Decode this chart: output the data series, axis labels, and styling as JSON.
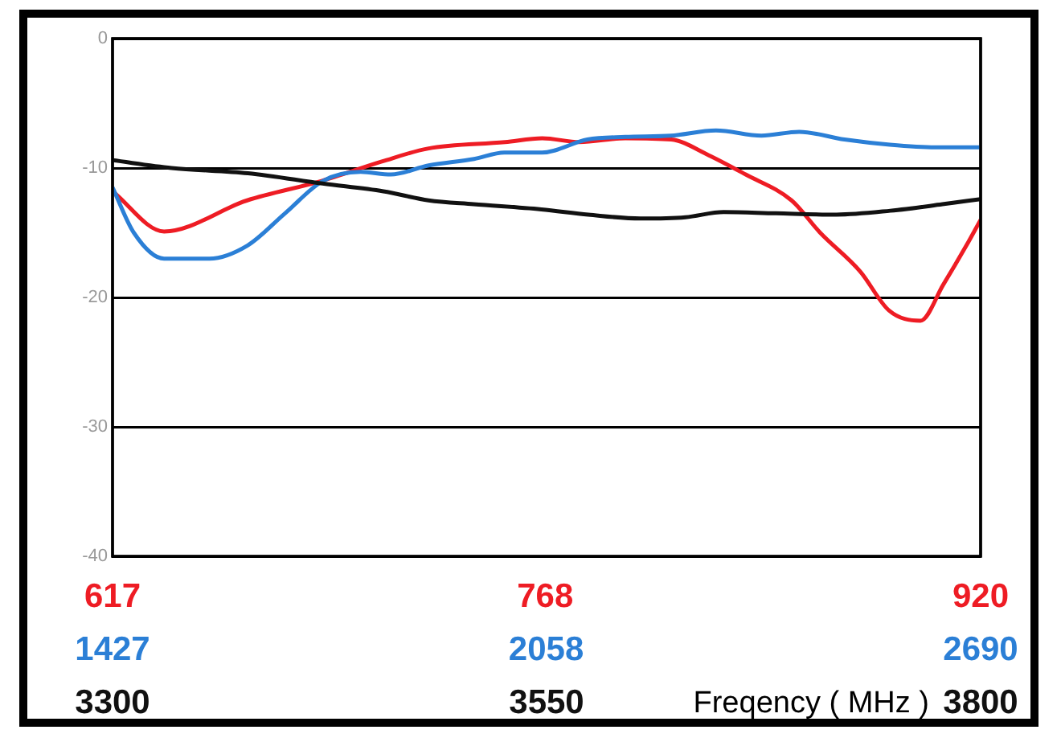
{
  "chart_data": [
    {
      "type": "line",
      "xlim": [
        617,
        920
      ],
      "xticks": [
        617,
        768,
        920
      ],
      "ylim": [
        -40,
        0
      ],
      "yticks": [
        0,
        -10,
        -20,
        -30,
        -40
      ],
      "grid": "y",
      "legend": false,
      "marker": "none",
      "line_style": "solid",
      "series": [
        {
          "color": "#ee1c24",
          "x": [
            617,
            635,
            664,
            690,
            711,
            727,
            754,
            767,
            780,
            796,
            812,
            825,
            838,
            854,
            864,
            878,
            888,
            899,
            907,
            915,
            920
          ],
          "values": [
            -11.8,
            -14.9,
            -12.5,
            -11,
            -9.5,
            -8.5,
            -8,
            -7.7,
            -8,
            -7.7,
            -7.8,
            -9,
            -10.5,
            -12.5,
            -15,
            -18,
            -21,
            -21.8,
            -19,
            -16,
            -14
          ]
        }
      ]
    },
    {
      "type": "line",
      "xlim": [
        1427,
        2690
      ],
      "xticks": [
        1427,
        2058,
        2690
      ],
      "ylim": [
        -40,
        0
      ],
      "tick_labels": "x",
      "legend": false,
      "marker": "none",
      "line_style": "solid",
      "series": [
        {
          "color": "#2b7fd6",
          "x": [
            1427,
            1458,
            1502,
            1568,
            1623,
            1678,
            1733,
            1788,
            1832,
            1887,
            1953,
            1997,
            2052,
            2118,
            2173,
            2239,
            2305,
            2371,
            2426,
            2492,
            2558,
            2624,
            2690
          ],
          "values": [
            -11.5,
            -15,
            -17,
            -17,
            -16,
            -13.5,
            -11,
            -10.3,
            -10.5,
            -9.8,
            -9.3,
            -8.8,
            -8.8,
            -7.8,
            -7.6,
            -7.5,
            -7.1,
            -7.5,
            -7.2,
            -7.8,
            -8.2,
            -8.4,
            -8.4
          ]
        }
      ]
    },
    {
      "type": "line",
      "xlabel": "Freqency ( MHz )",
      "xlim": [
        3300,
        3800
      ],
      "xticks": [
        3300,
        3550,
        3800
      ],
      "ylim": [
        -40,
        0
      ],
      "tick_labels": "x",
      "legend": false,
      "marker": "none",
      "line_style": "solid",
      "series": [
        {
          "color": "#111111",
          "x": [
            3300,
            3334,
            3378,
            3421,
            3456,
            3482,
            3508,
            3547,
            3574,
            3604,
            3630,
            3652,
            3682,
            3717,
            3748,
            3778,
            3800
          ],
          "values": [
            -9.4,
            -10,
            -10.4,
            -11.2,
            -11.8,
            -12.5,
            -12.8,
            -13.2,
            -13.6,
            -13.9,
            -13.8,
            -13.4,
            -13.5,
            -13.6,
            -13.3,
            -12.8,
            -12.4
          ]
        }
      ]
    }
  ]
}
